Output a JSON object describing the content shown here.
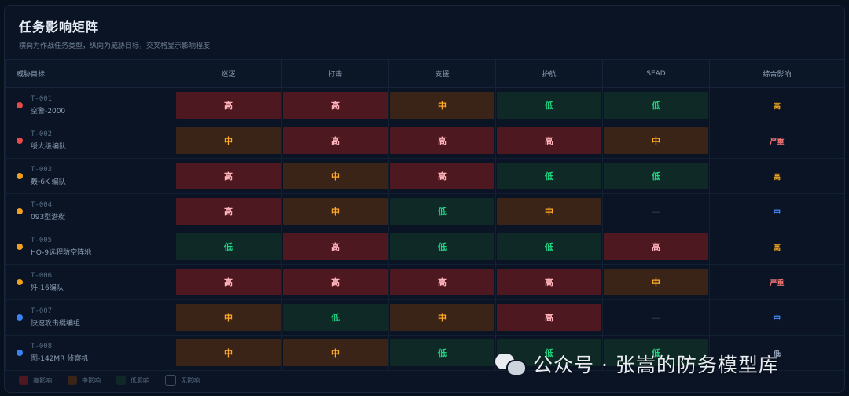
{
  "header": {
    "title": "任务影响矩阵",
    "subtitle": "横向为作战任务类型，纵向为威胁目标，交叉格显示影响程度"
  },
  "columns": [
    "威胁目标",
    "巡逻",
    "打击",
    "支援",
    "护航",
    "SEAD",
    "综合影响"
  ],
  "rows": [
    {
      "id": "T-001",
      "name": "空警-2000",
      "dot": "#e84a4a",
      "cells": [
        "高",
        "高",
        "中",
        "低",
        "低"
      ],
      "levels": [
        "high",
        "high",
        "mid",
        "low",
        "low"
      ],
      "overall": "高",
      "overall_level": "high"
    },
    {
      "id": "T-002",
      "name": "绥大级编队",
      "dot": "#e84a4a",
      "cells": [
        "中",
        "高",
        "高",
        "高",
        "中"
      ],
      "levels": [
        "mid",
        "high",
        "high",
        "high",
        "mid"
      ],
      "overall": "严重",
      "overall_level": "severe"
    },
    {
      "id": "T-003",
      "name": "轰-6K 编队",
      "dot": "#f2a01e",
      "cells": [
        "高",
        "中",
        "高",
        "低",
        "低"
      ],
      "levels": [
        "high",
        "mid",
        "high",
        "low",
        "low"
      ],
      "overall": "高",
      "overall_level": "high"
    },
    {
      "id": "T-004",
      "name": "093型潜艇",
      "dot": "#f2a01e",
      "cells": [
        "高",
        "中",
        "低",
        "中",
        "—"
      ],
      "levels": [
        "high",
        "mid",
        "low",
        "mid",
        "none"
      ],
      "overall": "中",
      "overall_level": "mid"
    },
    {
      "id": "T-005",
      "name": "HQ-9远程防空阵地",
      "dot": "#f2a01e",
      "cells": [
        "低",
        "高",
        "低",
        "低",
        "高"
      ],
      "levels": [
        "low",
        "high",
        "low",
        "low",
        "high"
      ],
      "overall": "高",
      "overall_level": "high"
    },
    {
      "id": "T-006",
      "name": "歼-16编队",
      "dot": "#f2a01e",
      "cells": [
        "高",
        "高",
        "高",
        "高",
        "中"
      ],
      "levels": [
        "high",
        "high",
        "high",
        "high",
        "mid"
      ],
      "overall": "严重",
      "overall_level": "severe"
    },
    {
      "id": "T-007",
      "name": "快速攻击艇编组",
      "dot": "#3b82f6",
      "cells": [
        "中",
        "低",
        "中",
        "高",
        "—"
      ],
      "levels": [
        "mid",
        "low",
        "mid",
        "high",
        "none"
      ],
      "overall": "中",
      "overall_level": "mid"
    },
    {
      "id": "T-008",
      "name": "图-142MR 侦察机",
      "dot": "#3b82f6",
      "cells": [
        "中",
        "中",
        "低",
        "低",
        "低"
      ],
      "levels": [
        "mid",
        "mid",
        "low",
        "low",
        "low"
      ],
      "overall": "低",
      "overall_level": "low"
    }
  ],
  "legend": [
    {
      "label": "高影响",
      "level": "high"
    },
    {
      "label": "中影响",
      "level": "mid"
    },
    {
      "label": "低影响",
      "level": "low"
    },
    {
      "label": "无影响",
      "level": "none"
    }
  ],
  "watermark": "公众号 · 张嵩的防务模型库"
}
